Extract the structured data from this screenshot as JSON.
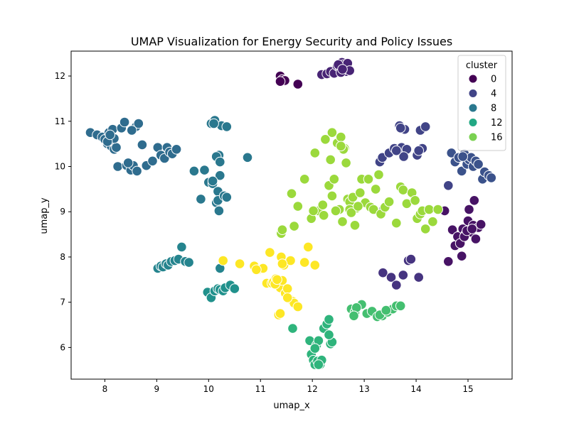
{
  "chart_data": {
    "type": "scatter",
    "title": "UMAP Visualization for Energy Security and Policy Issues",
    "xlabel": "umap_x",
    "ylabel": "umap_y",
    "xlim": [
      7.35,
      15.85
    ],
    "ylim": [
      5.3,
      12.55
    ],
    "xticks": [
      8,
      9,
      10,
      11,
      12,
      13,
      14,
      15
    ],
    "yticks": [
      6,
      7,
      8,
      9,
      10,
      11,
      12
    ],
    "grid": false,
    "legend": {
      "title": "cluster",
      "placement": "top-right",
      "entries": [
        {
          "label": "0",
          "color": "#440154"
        },
        {
          "label": "4",
          "color": "#414487"
        },
        {
          "label": "8",
          "color": "#2a788e"
        },
        {
          "label": "12",
          "color": "#22a884"
        },
        {
          "label": "16",
          "color": "#7ad151"
        }
      ]
    },
    "cluster_colors": {
      "0": "#440154",
      "1": "#471365",
      "2": "#482475",
      "3": "#463480",
      "4": "#414487",
      "5": "#3b528b",
      "6": "#355f8d",
      "7": "#2f6c8e",
      "8": "#2a788e",
      "9": "#25848e",
      "10": "#21918c",
      "11": "#1e9c89",
      "12": "#22a884",
      "13": "#2fb47c",
      "14": "#44bf70",
      "15": "#5ec962",
      "16": "#7ad151",
      "17": "#9bd93c",
      "18": "#bddf26",
      "19": "#fde725"
    },
    "series": [
      {
        "cluster": 0,
        "x": [
          11.38,
          11.42,
          11.47,
          11.38,
          11.72
        ],
        "y": [
          12.0,
          11.92,
          11.9,
          11.88,
          11.82
        ]
      },
      {
        "cluster": 2,
        "x": [
          12.18,
          12.28,
          12.35,
          12.42,
          12.48,
          12.53,
          12.57,
          12.6,
          12.62,
          12.65,
          12.68,
          12.72,
          12.55,
          12.5,
          12.58
        ],
        "y": [
          12.03,
          12.05,
          12.1,
          12.06,
          12.22,
          12.18,
          12.3,
          12.25,
          12.2,
          12.1,
          12.28,
          12.12,
          12.08,
          12.25,
          12.15
        ]
      },
      {
        "cluster": 1,
        "x": [
          14.62,
          14.7,
          14.75,
          14.8,
          14.85,
          14.9,
          14.95,
          15.0,
          15.05,
          15.1,
          15.15,
          15.2,
          15.25,
          15.02,
          14.88,
          14.93,
          15.12,
          14.55,
          14.98,
          15.08
        ],
        "y": [
          7.9,
          8.6,
          8.25,
          8.45,
          8.3,
          8.62,
          8.5,
          8.8,
          8.55,
          8.7,
          8.4,
          8.65,
          8.72,
          9.05,
          8.02,
          8.45,
          9.25,
          9.02,
          8.58,
          8.62
        ]
      },
      {
        "cluster": 3,
        "x": [
          13.36,
          13.52,
          13.62,
          13.75,
          13.85,
          13.9,
          14.05
        ],
        "y": [
          7.65,
          7.55,
          7.38,
          7.6,
          7.92,
          7.95,
          7.55
        ]
      },
      {
        "cluster": 4,
        "x": [
          13.3,
          13.35,
          13.48,
          13.58,
          13.65,
          13.68,
          13.72,
          13.78,
          13.82,
          14.02,
          14.08,
          14.12,
          14.18,
          14.62,
          13.38,
          13.76,
          14.05,
          13.7,
          13.62
        ],
        "y": [
          10.1,
          10.2,
          10.3,
          10.4,
          10.35,
          10.9,
          10.42,
          10.82,
          10.38,
          10.25,
          10.8,
          10.4,
          10.88,
          9.58,
          9.07,
          10.22,
          10.35,
          10.85,
          10.35
        ]
      },
      {
        "cluster": 5,
        "x": [
          14.68,
          14.75,
          14.82,
          14.88,
          14.93,
          14.98,
          15.02,
          15.06,
          15.1,
          15.15,
          15.2,
          15.28,
          15.32,
          15.4,
          15.45,
          14.9
        ],
        "y": [
          10.3,
          10.1,
          10.2,
          9.9,
          10.28,
          10.05,
          10.15,
          10.2,
          10.0,
          10.12,
          10.05,
          9.72,
          9.88,
          9.8,
          9.75,
          10.22
        ]
      },
      {
        "cluster": 7,
        "x": [
          7.72,
          7.85,
          7.95,
          8.0,
          8.05,
          8.08,
          8.12,
          8.15,
          8.18,
          8.22,
          8.25,
          8.32,
          8.38,
          8.42,
          8.5,
          8.55,
          8.6,
          8.65,
          8.72,
          8.8,
          8.92,
          9.02,
          9.08,
          9.15,
          9.2,
          9.25,
          9.3,
          9.38,
          8.18,
          8.45,
          8.62,
          8.52,
          8.05,
          8.1
        ],
        "y": [
          10.75,
          10.7,
          10.65,
          10.6,
          10.5,
          10.75,
          10.45,
          10.82,
          10.38,
          10.42,
          10.0,
          10.85,
          10.98,
          10.02,
          9.92,
          10.02,
          10.88,
          10.95,
          10.48,
          10.02,
          10.12,
          10.42,
          10.25,
          10.18,
          10.42,
          10.32,
          10.28,
          10.38,
          10.62,
          10.08,
          9.9,
          10.8,
          10.55,
          10.7
        ]
      },
      {
        "cluster": 8,
        "x": [
          9.72,
          9.85,
          9.92,
          10.0,
          10.05,
          10.08,
          10.12,
          10.15,
          10.18,
          10.2,
          10.22,
          10.25,
          10.35,
          10.18,
          10.2,
          10.15,
          10.22,
          10.3,
          10.35,
          10.1,
          10.75,
          10.08
        ],
        "y": [
          9.9,
          9.28,
          9.92,
          9.65,
          10.95,
          9.62,
          11.02,
          9.2,
          9.45,
          9.02,
          9.8,
          10.9,
          10.88,
          9.25,
          10.25,
          10.22,
          10.1,
          9.35,
          9.32,
          10.95,
          10.2,
          9.68
        ]
      },
      {
        "cluster": 9,
        "x": [
          9.02,
          9.08,
          9.12,
          9.18,
          9.22,
          9.28,
          9.35,
          9.42,
          9.48,
          9.55,
          9.62,
          10.22
        ],
        "y": [
          7.75,
          7.8,
          7.78,
          7.85,
          7.82,
          7.9,
          7.92,
          7.95,
          8.22,
          7.9,
          7.88,
          7.75
        ]
      },
      {
        "cluster": 10,
        "x": [
          9.98,
          10.05,
          10.12,
          10.18,
          10.22,
          10.28,
          10.32,
          10.42,
          10.5
        ],
        "y": [
          7.22,
          7.1,
          7.25,
          7.3,
          7.28,
          7.25,
          7.32,
          7.38,
          7.3
        ]
      },
      {
        "cluster": 13,
        "x": [
          11.62,
          11.95,
          11.98,
          12.02,
          12.05,
          12.08,
          12.1,
          12.12,
          12.15,
          12.18,
          12.22,
          12.28,
          12.32,
          12.35,
          12.38,
          12.32,
          12.05,
          12.12
        ],
        "y": [
          6.42,
          6.15,
          5.85,
          5.72,
          5.62,
          6.05,
          5.7,
          6.15,
          5.62,
          5.72,
          6.42,
          6.52,
          6.62,
          6.08,
          6.12,
          6.28,
          5.98,
          5.62
        ]
      },
      {
        "cluster": 14,
        "x": [
          12.75,
          12.82,
          12.95,
          13.05,
          13.15,
          13.25,
          13.35,
          13.45,
          13.55,
          13.62,
          13.7,
          12.85,
          13.3,
          13.42,
          12.8
        ],
        "y": [
          6.85,
          6.78,
          6.95,
          6.75,
          6.8,
          6.68,
          6.7,
          6.78,
          6.85,
          6.92,
          6.92,
          6.88,
          6.72,
          6.82,
          6.7
        ]
      },
      {
        "cluster": 17,
        "x": [
          11.4,
          11.6,
          11.72,
          11.65,
          11.85,
          11.98,
          12.05,
          12.12,
          12.2,
          12.25,
          12.32,
          12.38,
          12.42,
          12.48,
          12.52,
          12.55,
          12.58,
          12.62,
          12.68,
          12.72,
          12.78,
          12.82,
          12.85,
          12.92,
          12.95,
          13.02,
          13.08,
          13.12,
          13.18,
          13.22,
          13.28,
          13.32,
          13.4,
          13.48,
          13.62,
          13.7,
          13.75,
          13.82,
          13.92,
          13.98,
          14.02,
          14.08,
          14.12,
          14.18,
          14.25,
          14.32,
          14.42,
          12.6,
          12.65,
          12.35,
          12.55,
          12.45,
          12.72,
          12.38,
          12.02,
          12.22,
          12.75,
          12.88,
          11.42
        ],
        "y": [
          8.52,
          9.4,
          9.12,
          8.68,
          9.72,
          8.85,
          10.3,
          9.02,
          9.15,
          10.6,
          9.58,
          10.75,
          9.72,
          10.52,
          9.05,
          10.65,
          8.78,
          10.4,
          9.28,
          9.22,
          9.32,
          8.7,
          9.08,
          9.42,
          9.72,
          9.2,
          9.72,
          9.1,
          9.05,
          9.5,
          9.82,
          8.95,
          9.1,
          9.22,
          8.75,
          9.55,
          9.48,
          9.18,
          9.42,
          9.25,
          8.85,
          8.95,
          9.02,
          8.62,
          9.05,
          8.78,
          9.05,
          10.38,
          10.08,
          10.15,
          10.45,
          9.02,
          9.05,
          9.35,
          9.02,
          8.92,
          8.98,
          9.12,
          8.6
        ]
      },
      {
        "cluster": 19,
        "x": [
          10.28,
          10.6,
          10.88,
          10.95,
          11.05,
          11.12,
          11.18,
          11.22,
          11.25,
          11.3,
          11.35,
          11.38,
          11.4,
          11.42,
          11.45,
          11.48,
          11.52,
          11.55,
          11.58,
          11.62,
          11.65,
          11.72,
          11.85,
          11.92,
          12.05,
          11.38,
          11.42,
          11.28,
          10.92,
          11.52,
          11.32
        ],
        "y": [
          7.92,
          7.85,
          7.8,
          7.72,
          7.75,
          7.42,
          8.1,
          7.42,
          7.45,
          7.52,
          6.72,
          7.32,
          8.0,
          7.48,
          7.82,
          7.2,
          7.3,
          7.08,
          7.92,
          7.02,
          6.98,
          6.9,
          7.88,
          8.22,
          7.82,
          6.75,
          7.85,
          7.4,
          7.72,
          7.1,
          7.5
        ]
      }
    ]
  }
}
